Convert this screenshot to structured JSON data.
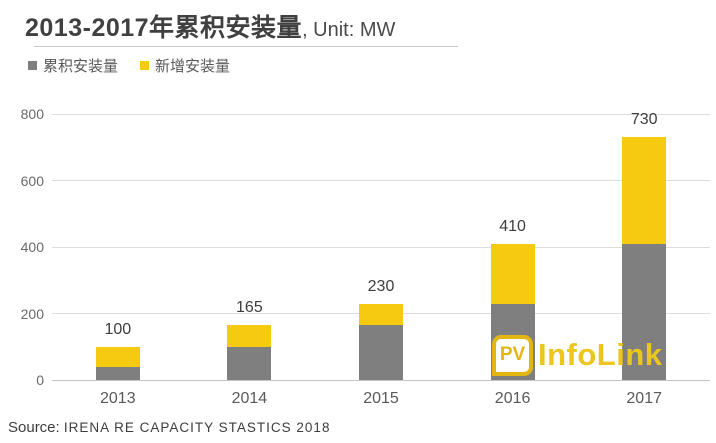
{
  "title": {
    "main": "2013-2017年累积安装量",
    "suffix": ", Unit: MW"
  },
  "legend": {
    "items": [
      {
        "label": "累积安装量",
        "color": "#7f7f7f"
      },
      {
        "label": "新增安装量",
        "color": "#f7ca12"
      }
    ]
  },
  "chart_data": {
    "type": "bar",
    "stacked": true,
    "title": "2013-2017年累积安装量, Unit: MW",
    "unit": "MW",
    "categories": [
      "2013",
      "2014",
      "2015",
      "2016",
      "2017"
    ],
    "series": [
      {
        "name": "累积安装量",
        "color": "#7f7f7f",
        "values": [
          40,
          100,
          165,
          230,
          410
        ]
      },
      {
        "name": "新增安装量",
        "color": "#f7ca12",
        "values": [
          60,
          65,
          65,
          180,
          320
        ]
      }
    ],
    "totals": [
      100,
      165,
      230,
      410,
      730
    ],
    "ylim": [
      0,
      800
    ],
    "yticks": [
      0,
      200,
      400,
      600,
      800
    ],
    "grid": true,
    "legend_position": "top-left"
  },
  "logo": {
    "badge": "PV",
    "text": "InfoLink",
    "color": "#e2b714"
  },
  "source": {
    "prefix": "Source: ",
    "text": "IRENA RE CAPACITY STASTICS 2018"
  }
}
